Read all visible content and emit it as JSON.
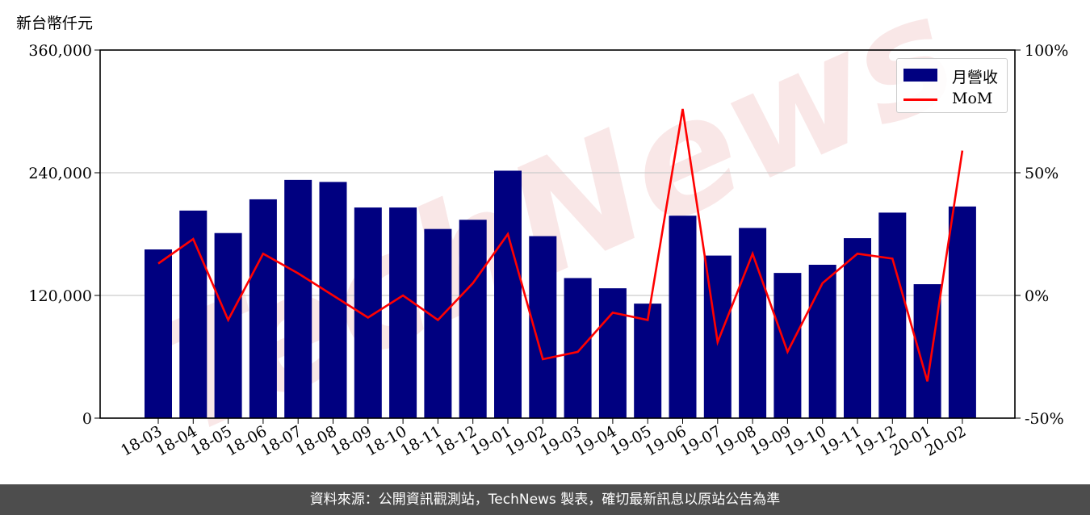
{
  "footer_text": "資料來源：公開資訊觀測站，TechNews 製表，確切最新訊息以原站公告為準",
  "watermark_text": "TechNews",
  "chart_data": {
    "type": "bar",
    "ylabel": "新台幣仟元",
    "ylim": [
      0,
      360000
    ],
    "y2lim": [
      -50,
      100
    ],
    "yticks": [
      "0",
      "120,000",
      "240,000",
      "360,000"
    ],
    "y2ticks": [
      "-50%",
      "0%",
      "50%",
      "100%"
    ],
    "grid": true,
    "legend_position": "top-right",
    "categories": [
      "18-03",
      "18-04",
      "18-05",
      "18-06",
      "18-07",
      "18-08",
      "18-09",
      "18-10",
      "18-11",
      "18-12",
      "19-01",
      "19-02",
      "19-03",
      "19-04",
      "19-05",
      "19-06",
      "19-07",
      "19-08",
      "19-09",
      "19-10",
      "19-11",
      "19-12",
      "20-01",
      "20-02"
    ],
    "series": [
      {
        "name": "月營收",
        "type": "bar",
        "axis": "left",
        "color": "#000080",
        "values": [
          165000,
          203000,
          181000,
          214000,
          233000,
          231000,
          206000,
          206000,
          185000,
          194000,
          242000,
          178000,
          137000,
          127000,
          112000,
          198000,
          159000,
          186000,
          142000,
          150000,
          176000,
          201000,
          131000,
          207000
        ]
      },
      {
        "name": "MoM",
        "type": "line",
        "axis": "right",
        "color": "#ff0000",
        "values": [
          13,
          23,
          -10,
          17,
          9,
          0,
          -9,
          0,
          -10,
          5,
          25,
          -26,
          -23,
          -7,
          -10,
          76,
          -19,
          17,
          -23,
          5,
          17,
          15,
          -35,
          59
        ]
      }
    ]
  }
}
